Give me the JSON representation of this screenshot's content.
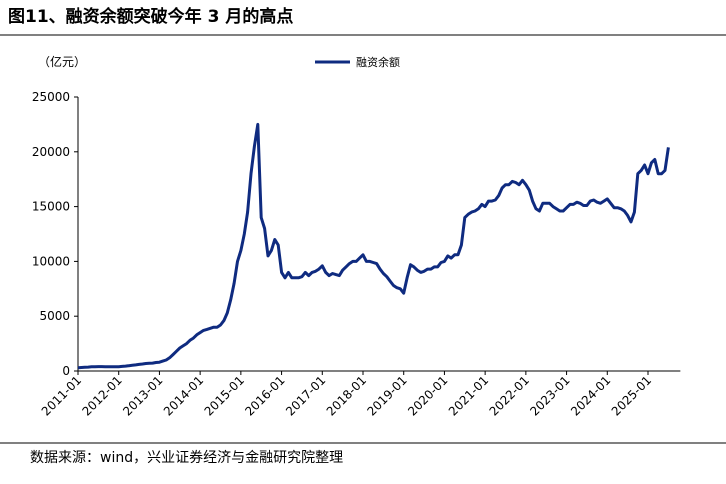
{
  "chart_data": {
    "type": "line",
    "title": "图11、融资余额突破今年 3 月的高点",
    "y_label": "（亿元）",
    "source": "数据来源：wind，兴业证券经济与金融研究院整理",
    "x": [
      "2011-01",
      "2011-02",
      "2011-03",
      "2011-04",
      "2011-05",
      "2011-06",
      "2011-07",
      "2011-08",
      "2011-09",
      "2011-10",
      "2011-11",
      "2011-12",
      "2012-01",
      "2012-02",
      "2012-03",
      "2012-04",
      "2012-05",
      "2012-06",
      "2012-07",
      "2012-08",
      "2012-09",
      "2012-10",
      "2012-11",
      "2012-12",
      "2013-01",
      "2013-02",
      "2013-03",
      "2013-04",
      "2013-05",
      "2013-06",
      "2013-07",
      "2013-08",
      "2013-09",
      "2013-10",
      "2013-11",
      "2013-12",
      "2014-01",
      "2014-02",
      "2014-03",
      "2014-04",
      "2014-05",
      "2014-06",
      "2014-07",
      "2014-08",
      "2014-09",
      "2014-10",
      "2014-11",
      "2014-12",
      "2015-01",
      "2015-02",
      "2015-03",
      "2015-04",
      "2015-05",
      "2015-06",
      "2015-07",
      "2015-08",
      "2015-09",
      "2015-10",
      "2015-11",
      "2015-12",
      "2016-01",
      "2016-02",
      "2016-03",
      "2016-04",
      "2016-05",
      "2016-06",
      "2016-07",
      "2016-08",
      "2016-09",
      "2016-10",
      "2016-11",
      "2016-12",
      "2017-01",
      "2017-02",
      "2017-03",
      "2017-04",
      "2017-05",
      "2017-06",
      "2017-07",
      "2017-08",
      "2017-09",
      "2017-10",
      "2017-11",
      "2017-12",
      "2018-01",
      "2018-02",
      "2018-03",
      "2018-04",
      "2018-05",
      "2018-06",
      "2018-07",
      "2018-08",
      "2018-09",
      "2018-10",
      "2018-11",
      "2018-12",
      "2019-01",
      "2019-02",
      "2019-03",
      "2019-04",
      "2019-05",
      "2019-06",
      "2019-07",
      "2019-08",
      "2019-09",
      "2019-10",
      "2019-11",
      "2019-12",
      "2020-01",
      "2020-02",
      "2020-03",
      "2020-04",
      "2020-05",
      "2020-06",
      "2020-07",
      "2020-08",
      "2020-09",
      "2020-10",
      "2020-11",
      "2020-12",
      "2021-01",
      "2021-02",
      "2021-03",
      "2021-04",
      "2021-05",
      "2021-06",
      "2021-07",
      "2021-08",
      "2021-09",
      "2021-10",
      "2021-11",
      "2021-12",
      "2022-01",
      "2022-02",
      "2022-03",
      "2022-04",
      "2022-05",
      "2022-06",
      "2022-07",
      "2022-08",
      "2022-09",
      "2022-10",
      "2022-11",
      "2022-12",
      "2023-01",
      "2023-02",
      "2023-03",
      "2023-04",
      "2023-05",
      "2023-06",
      "2023-07",
      "2023-08",
      "2023-09",
      "2023-10",
      "2023-11",
      "2023-12",
      "2024-01",
      "2024-02",
      "2024-03",
      "2024-04",
      "2024-05",
      "2024-06",
      "2024-07",
      "2024-08",
      "2024-09",
      "2024-10",
      "2024-11",
      "2024-12",
      "2025-01",
      "2025-02",
      "2025-03",
      "2025-04",
      "2025-05",
      "2025-06",
      "2025-07"
    ],
    "series": [
      {
        "name": "融资余额",
        "color": "#0f2b80",
        "values": [
          300,
          320,
          340,
          360,
          380,
          390,
          400,
          400,
          390,
          380,
          380,
          380,
          390,
          420,
          450,
          480,
          520,
          560,
          600,
          640,
          680,
          700,
          720,
          780,
          800,
          900,
          1000,
          1200,
          1500,
          1800,
          2100,
          2300,
          2500,
          2800,
          3000,
          3300,
          3500,
          3700,
          3800,
          3900,
          4000,
          4000,
          4200,
          4600,
          5300,
          6500,
          8000,
          10000,
          11000,
          12500,
          14500,
          18000,
          20500,
          22500,
          14000,
          13000,
          10500,
          11000,
          12000,
          11500,
          9000,
          8500,
          9000,
          8500,
          8500,
          8500,
          8600,
          9000,
          8700,
          9000,
          9100,
          9300,
          9600,
          9000,
          8700,
          8900,
          8800,
          8700,
          9200,
          9500,
          9800,
          10000,
          10000,
          10300,
          10600,
          10000,
          10000,
          9900,
          9800,
          9300,
          8900,
          8600,
          8200,
          7800,
          7600,
          7500,
          7100,
          8500,
          9700,
          9500,
          9200,
          9000,
          9100,
          9300,
          9300,
          9500,
          9500,
          9900,
          10000,
          10500,
          10300,
          10600,
          10600,
          11500,
          14000,
          14300,
          14500,
          14600,
          14800,
          15200,
          15000,
          15500,
          15500,
          15600,
          16000,
          16700,
          17000,
          17000,
          17300,
          17200,
          17000,
          17400,
          17000,
          16500,
          15500,
          14800,
          14600,
          15300,
          15300,
          15300,
          15000,
          14800,
          14600,
          14600,
          14900,
          15200,
          15200,
          15400,
          15300,
          15100,
          15100,
          15500,
          15600,
          15400,
          15300,
          15500,
          15700,
          15300,
          14900,
          14900,
          14800,
          14600,
          14200,
          13600,
          14500,
          18000,
          18300,
          18800,
          18000,
          19000,
          19300,
          18000,
          18000,
          18300,
          20400
        ]
      }
    ],
    "ylim": [
      0,
      25000
    ],
    "yticks": [
      0,
      5000,
      10000,
      15000,
      20000,
      25000
    ],
    "xtick_every": 12,
    "grid": false
  }
}
